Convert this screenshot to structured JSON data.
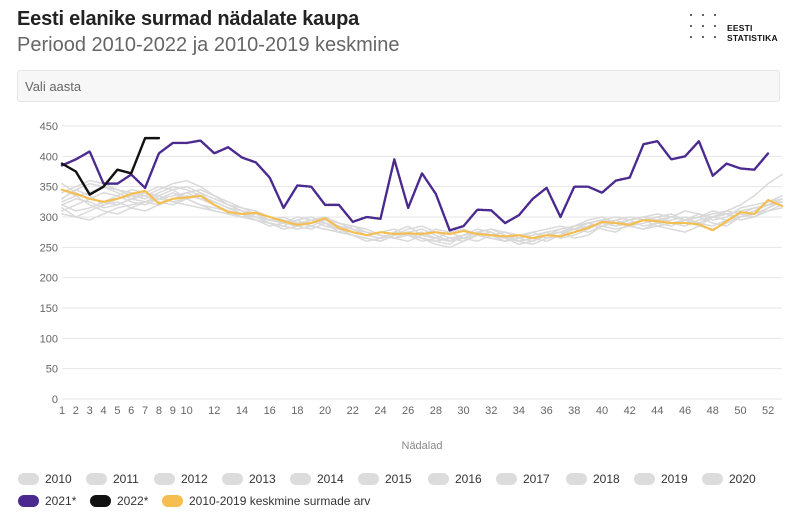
{
  "header": {
    "title": "Eesti elanike surmad nädalate kaupa",
    "subtitle": "Periood 2010-2022 ja 2010-2019 keskmine"
  },
  "logo": {
    "line1": "EESTI",
    "line2": "STATISTIKA"
  },
  "year_select": {
    "placeholder": "Vali aasta"
  },
  "colors": {
    "gray": "#d9d9d9",
    "series2021": "#4b2a8f",
    "series2022": "#111111",
    "average": "#f6be4f",
    "grid": "#e6e6e6"
  },
  "chart_data": {
    "type": "line",
    "xlabel": "Nädalad",
    "ylabel": "",
    "xlim": [
      1,
      53
    ],
    "ylim": [
      0,
      450
    ],
    "x_ticks": [
      1,
      2,
      3,
      4,
      5,
      6,
      7,
      8,
      9,
      10,
      12,
      14,
      16,
      18,
      20,
      22,
      24,
      26,
      28,
      30,
      32,
      34,
      36,
      38,
      40,
      42,
      44,
      46,
      48,
      50,
      52
    ],
    "y_ticks": [
      0,
      50,
      100,
      150,
      200,
      250,
      300,
      350,
      400,
      450
    ],
    "grid": true,
    "legend_position": "bottom",
    "series": [
      {
        "name": "2010",
        "style": "gray",
        "values": [
          330,
          345,
          335,
          320,
          330,
          335,
          340,
          350,
          345,
          330,
          320,
          315,
          310,
          305,
          300,
          295,
          290,
          300,
          295,
          285,
          280,
          270,
          265,
          260,
          270,
          275,
          265,
          260,
          255,
          270,
          280,
          275,
          265,
          260,
          255,
          265,
          270,
          275,
          285,
          290,
          295,
          285,
          280,
          285,
          290,
          295,
          285,
          280,
          290,
          300,
          310,
          320,
          330
        ]
      },
      {
        "name": "2011",
        "style": "gray",
        "values": [
          320,
          310,
          315,
          325,
          335,
          345,
          340,
          330,
          325,
          330,
          340,
          320,
          310,
          300,
          305,
          295,
          300,
          290,
          285,
          280,
          275,
          285,
          280,
          270,
          265,
          260,
          270,
          280,
          275,
          265,
          260,
          270,
          275,
          265,
          260,
          270,
          280,
          285,
          290,
          280,
          275,
          290,
          295,
          285,
          280,
          275,
          285,
          300,
          305,
          295,
          300,
          310,
          320
        ]
      },
      {
        "name": "2012",
        "style": "gray",
        "values": [
          340,
          350,
          360,
          355,
          345,
          340,
          335,
          345,
          355,
          360,
          350,
          335,
          325,
          315,
          305,
          300,
          290,
          285,
          295,
          300,
          290,
          280,
          275,
          270,
          265,
          275,
          280,
          270,
          260,
          265,
          275,
          270,
          260,
          265,
          270,
          275,
          265,
          270,
          280,
          290,
          285,
          295,
          300,
          290,
          285,
          295,
          300,
          290,
          285,
          300,
          310,
          325,
          335
        ]
      },
      {
        "name": "2013",
        "style": "gray",
        "values": [
          355,
          340,
          330,
          325,
          320,
          330,
          340,
          335,
          325,
          320,
          315,
          310,
          305,
          300,
          295,
          290,
          285,
          295,
          300,
          290,
          275,
          270,
          265,
          260,
          270,
          280,
          285,
          275,
          265,
          260,
          270,
          265,
          260,
          270,
          265,
          260,
          270,
          285,
          295,
          300,
          290,
          285,
          295,
          300,
          305,
          295,
          290,
          300,
          310,
          305,
          300,
          315,
          330
        ]
      },
      {
        "name": "2014",
        "style": "gray",
        "values": [
          315,
          300,
          295,
          305,
          315,
          320,
          325,
          330,
          335,
          340,
          330,
          320,
          310,
          305,
          295,
          285,
          290,
          295,
          285,
          280,
          275,
          270,
          260,
          265,
          275,
          270,
          265,
          255,
          250,
          260,
          270,
          275,
          265,
          255,
          260,
          270,
          275,
          265,
          270,
          285,
          290,
          285,
          280,
          290,
          295,
          300,
          290,
          285,
          295,
          300,
          305,
          310,
          315
        ]
      },
      {
        "name": "2015",
        "style": "gray",
        "values": [
          345,
          335,
          320,
          310,
          305,
          315,
          325,
          320,
          330,
          340,
          345,
          335,
          320,
          310,
          305,
          300,
          295,
          285,
          280,
          290,
          285,
          275,
          270,
          265,
          275,
          285,
          270,
          265,
          260,
          270,
          275,
          280,
          270,
          260,
          265,
          270,
          275,
          280,
          290,
          295,
          300,
          295,
          285,
          290,
          300,
          310,
          305,
          295,
          300,
          315,
          320,
          325,
          330
        ]
      },
      {
        "name": "2016",
        "style": "gray",
        "values": [
          325,
          335,
          340,
          350,
          345,
          335,
          330,
          340,
          350,
          345,
          335,
          325,
          315,
          310,
          300,
          290,
          280,
          285,
          295,
          290,
          280,
          275,
          270,
          275,
          280,
          270,
          260,
          265,
          275,
          280,
          270,
          265,
          260,
          265,
          275,
          280,
          285,
          280,
          275,
          285,
          295,
          300,
          295,
          285,
          290,
          295,
          300,
          310,
          305,
          300,
          310,
          320,
          330
        ]
      },
      {
        "name": "2017",
        "style": "gray",
        "values": [
          310,
          320,
          330,
          340,
          335,
          325,
          320,
          330,
          340,
          330,
          320,
          310,
          305,
          300,
          295,
          290,
          285,
          280,
          285,
          295,
          290,
          285,
          275,
          270,
          265,
          270,
          275,
          265,
          260,
          270,
          275,
          270,
          265,
          270,
          275,
          265,
          270,
          280,
          285,
          290,
          285,
          290,
          295,
          300,
          290,
          285,
          295,
          300,
          305,
          300,
          305,
          315,
          325
        ]
      },
      {
        "name": "2018",
        "style": "gray",
        "values": [
          330,
          345,
          355,
          350,
          340,
          330,
          325,
          335,
          345,
          350,
          340,
          330,
          320,
          315,
          310,
          300,
          295,
          290,
          295,
          285,
          280,
          275,
          270,
          265,
          270,
          275,
          270,
          265,
          260,
          265,
          270,
          275,
          265,
          260,
          265,
          270,
          275,
          280,
          290,
          295,
          290,
          295,
          300,
          295,
          290,
          295,
          305,
          300,
          295,
          305,
          315,
          320,
          325
        ]
      },
      {
        "name": "2019",
        "style": "gray",
        "values": [
          320,
          330,
          325,
          315,
          320,
          330,
          335,
          325,
          320,
          330,
          335,
          325,
          315,
          305,
          300,
          295,
          290,
          285,
          290,
          295,
          285,
          280,
          270,
          265,
          270,
          275,
          265,
          260,
          265,
          270,
          275,
          270,
          265,
          260,
          265,
          275,
          280,
          285,
          290,
          285,
          280,
          285,
          290,
          295,
          300,
          295,
          290,
          300,
          305,
          310,
          315,
          320,
          325
        ]
      },
      {
        "name": "2020",
        "style": "gray",
        "values": [
          305,
          300,
          310,
          320,
          325,
          315,
          310,
          320,
          330,
          335,
          330,
          320,
          310,
          305,
          300,
          295,
          290,
          285,
          290,
          295,
          285,
          280,
          270,
          265,
          270,
          275,
          270,
          265,
          260,
          270,
          275,
          280,
          275,
          270,
          265,
          270,
          275,
          285,
          290,
          295,
          290,
          295,
          300,
          305,
          300,
          295,
          300,
          305,
          310,
          320,
          335,
          355,
          370
        ]
      },
      {
        "name": "2021*",
        "style": "series2021",
        "values": [
          385,
          395,
          408,
          355,
          355,
          370,
          348,
          405,
          422,
          422,
          426,
          405,
          415,
          398,
          390,
          365,
          315,
          352,
          350,
          320,
          320,
          292,
          300,
          297,
          395,
          315,
          372,
          338,
          278,
          285,
          312,
          311,
          290,
          303,
          330,
          348,
          300,
          350,
          350,
          340,
          360,
          365,
          420,
          425,
          395,
          400,
          425,
          368,
          388,
          380,
          378,
          405
        ]
      },
      {
        "name": "2022*",
        "style": "series2022",
        "values": [
          388,
          375,
          337,
          350,
          378,
          372,
          430,
          430
        ]
      },
      {
        "name": "2010-2019 keskmine surmade arv",
        "style": "average",
        "values": [
          345,
          338,
          330,
          325,
          330,
          338,
          343,
          322,
          330,
          332,
          335,
          320,
          308,
          305,
          307,
          300,
          293,
          287,
          290,
          298,
          282,
          275,
          270,
          275,
          272,
          273,
          272,
          275,
          272,
          277,
          272,
          270,
          268,
          270,
          265,
          270,
          268,
          275,
          282,
          292,
          290,
          287,
          295,
          293,
          290,
          290,
          288,
          278,
          293,
          308,
          305,
          328,
          318
        ]
      }
    ]
  }
}
